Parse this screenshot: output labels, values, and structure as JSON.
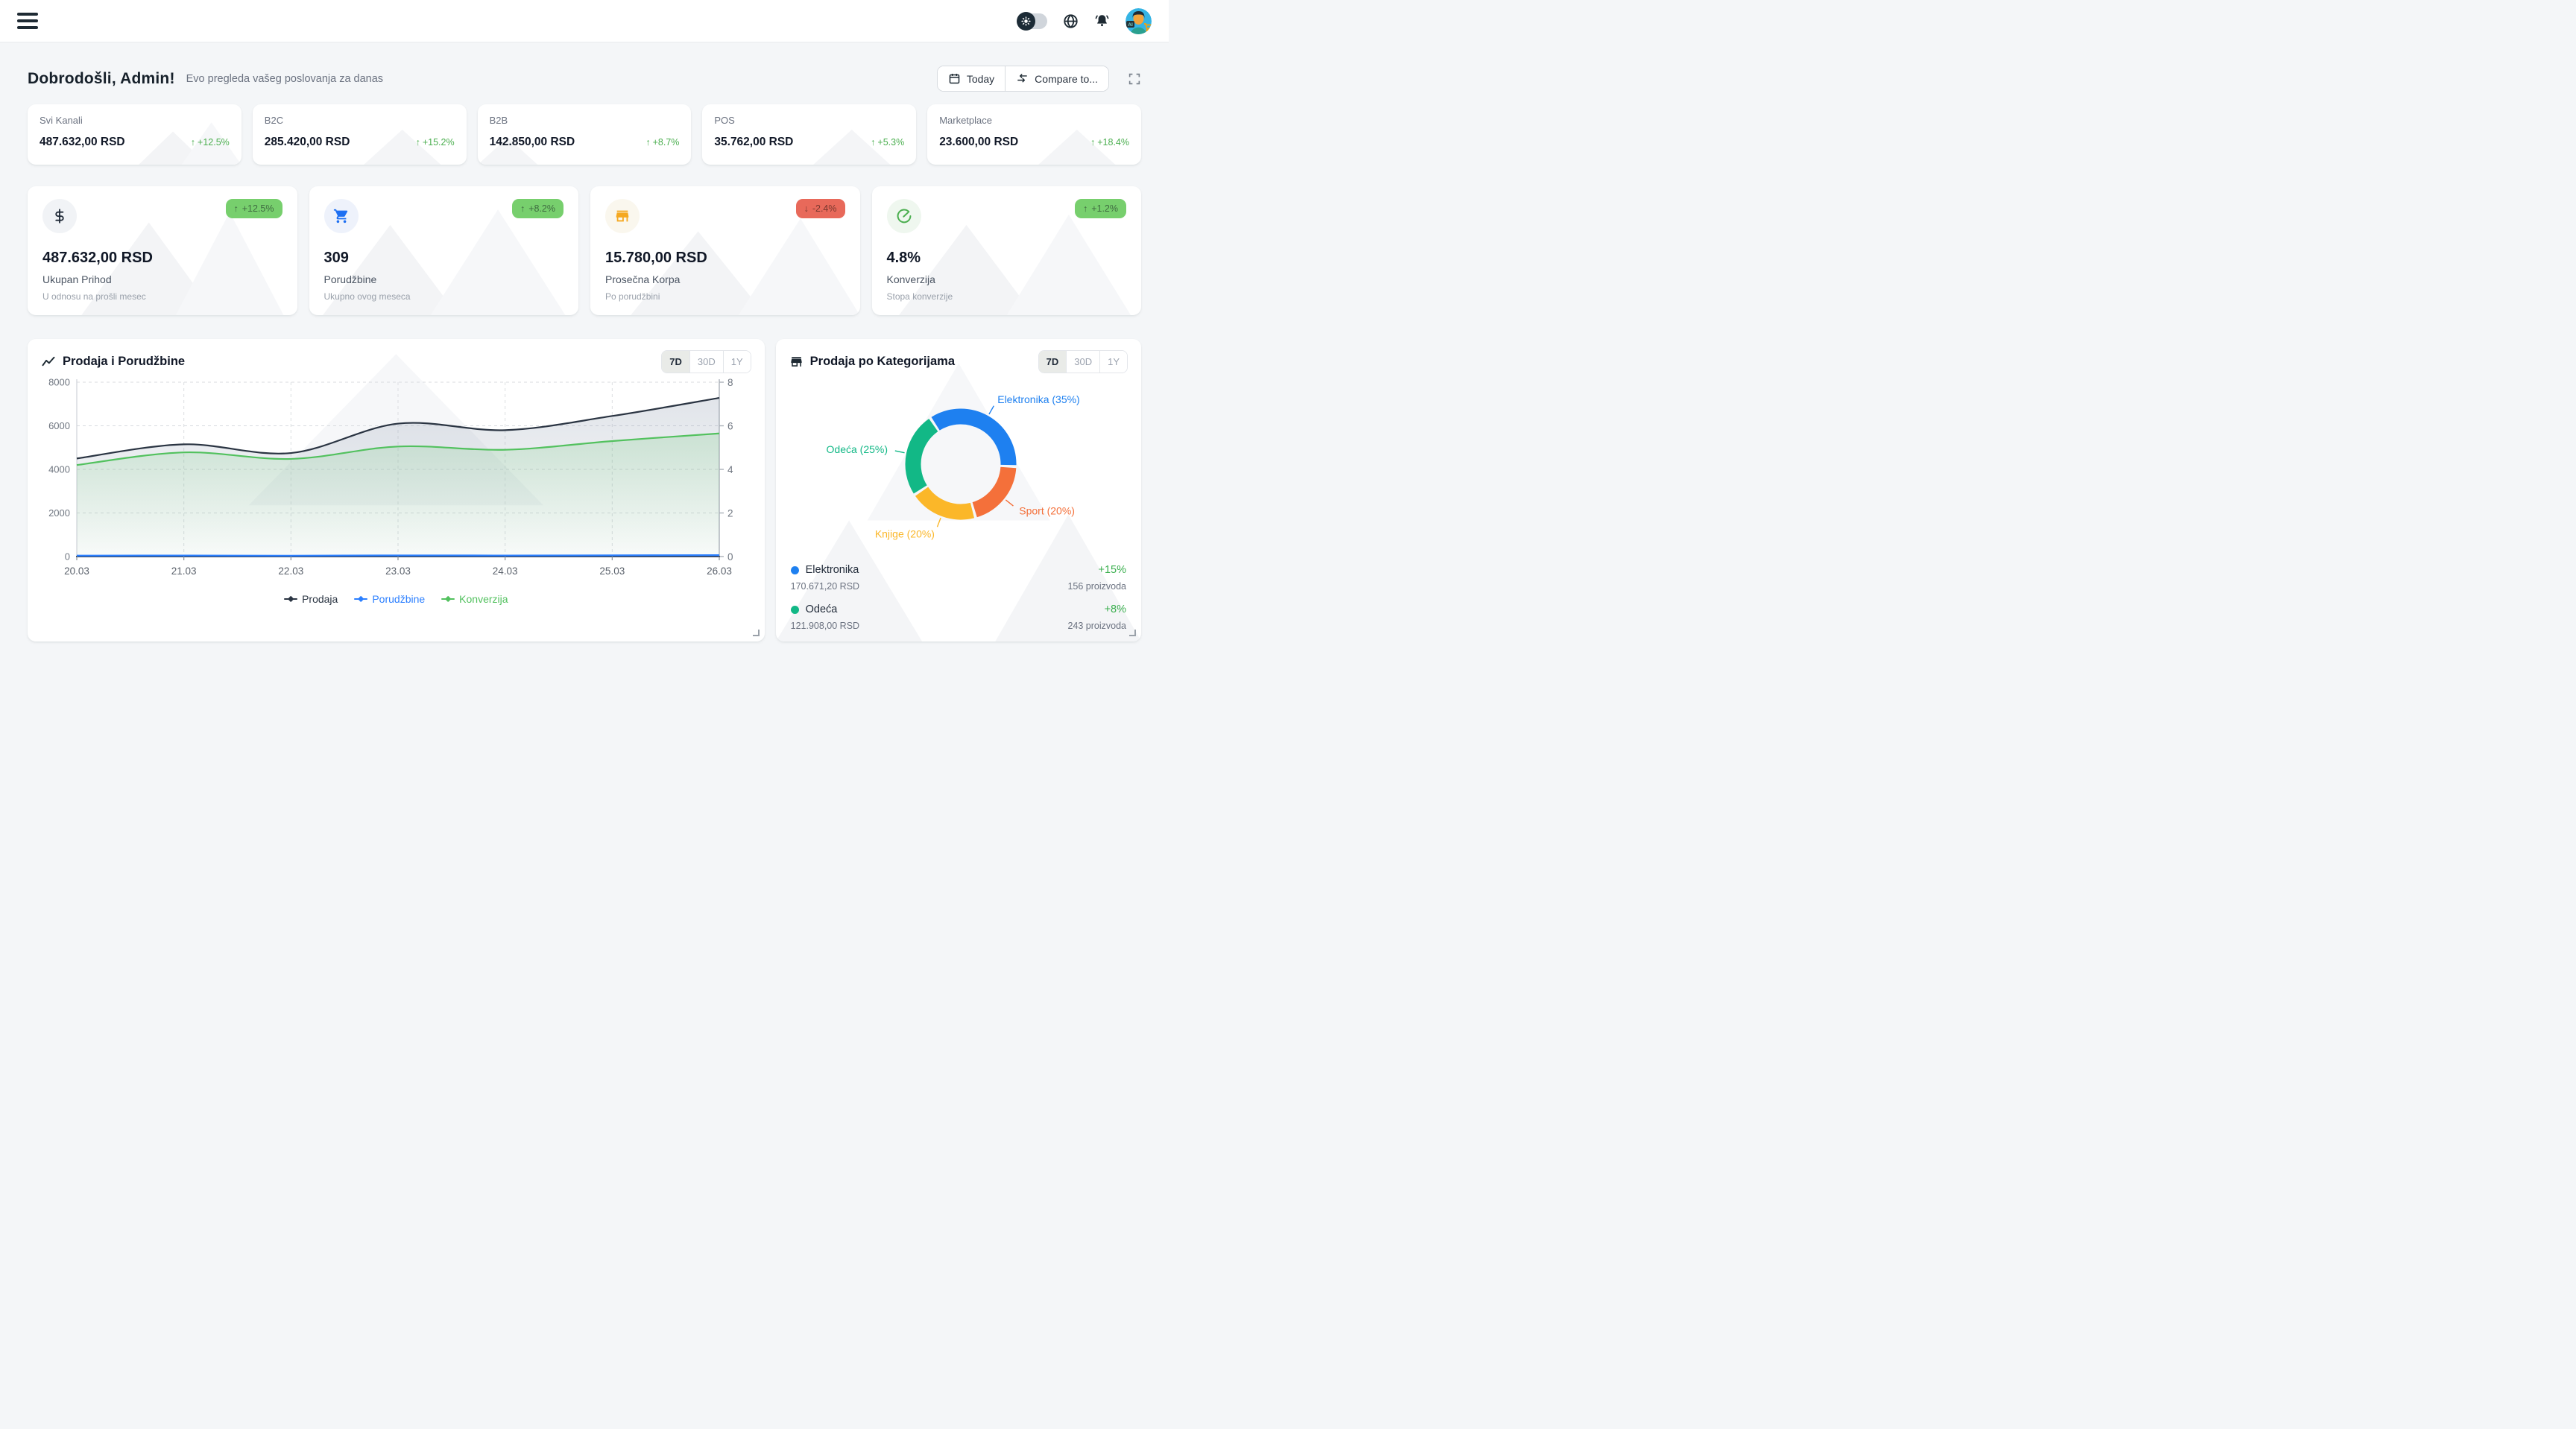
{
  "topbar": {
    "avatar_badge": "AI"
  },
  "header": {
    "title": "Dobrodošli, Admin!",
    "subtitle": "Evo pregleda vašeg poslovanja za danas",
    "today_label": "Today",
    "compare_label": "Compare to..."
  },
  "channels": [
    {
      "label": "Svi Kanali",
      "value": "487.632,00 RSD",
      "trend": "+12.5%"
    },
    {
      "label": "B2C",
      "value": "285.420,00 RSD",
      "trend": "+15.2%"
    },
    {
      "label": "B2B",
      "value": "142.850,00 RSD",
      "trend": "+8.7%"
    },
    {
      "label": "POS",
      "value": "35.762,00 RSD",
      "trend": "+5.3%"
    },
    {
      "label": "Marketplace",
      "value": "23.600,00 RSD",
      "trend": "+18.4%"
    }
  ],
  "kpis": [
    {
      "value": "487.632,00 RSD",
      "label": "Ukupan Prihod",
      "sublabel": "U odnosu na prošli mesec",
      "badge": "+12.5%",
      "direction": "up"
    },
    {
      "value": "309",
      "label": "Porudžbine",
      "sublabel": "Ukupno ovog meseca",
      "badge": "+8.2%",
      "direction": "up"
    },
    {
      "value": "15.780,00 RSD",
      "label": "Prosečna Korpa",
      "sublabel": "Po porudžbini",
      "badge": "-2.4%",
      "direction": "down"
    },
    {
      "value": "4.8%",
      "label": "Konverzija",
      "sublabel": "Stopa konverzije",
      "badge": "+1.2%",
      "direction": "up"
    }
  ],
  "sales_chart": {
    "title": "Prodaja i Porudžbine",
    "ranges": [
      "7D",
      "30D",
      "1Y"
    ],
    "active": "7D"
  },
  "category_chart": {
    "title": "Prodaja po Kategorijama",
    "ranges": [
      "7D",
      "30D",
      "1Y"
    ],
    "active": "7D",
    "legend": [
      {
        "name": "Elektronika",
        "change": "+15%",
        "value": "170.671,20 RSD",
        "products": "156 proizvoda",
        "color": "#1e80f0"
      },
      {
        "name": "Odeća",
        "change": "+8%",
        "value": "121.908,00 RSD",
        "products": "243 proizvoda",
        "color": "#12b886"
      }
    ]
  },
  "colors": {
    "positive": "#4caf50",
    "badge_up_bg": "#77cf6d",
    "badge_down_bg": "#e8695a"
  },
  "chart_data": [
    {
      "type": "line",
      "title": "Prodaja i Porudžbine",
      "x": [
        "20.03",
        "21.03",
        "22.03",
        "23.03",
        "24.03",
        "25.03",
        "26.03"
      ],
      "series": [
        {
          "name": "Prodaja",
          "axis": "left",
          "color": "#2a3442",
          "fill": "gray",
          "values": [
            4500,
            5150,
            4750,
            6100,
            5800,
            6450,
            7280
          ]
        },
        {
          "name": "Porudžbine",
          "axis": "left",
          "color": "#2b7fff",
          "fill": "none",
          "values": [
            40,
            44,
            38,
            50,
            46,
            54,
            62
          ]
        },
        {
          "name": "Konverzija",
          "axis": "right",
          "color": "#52c15e",
          "fill": "green",
          "values": [
            4.2,
            4.78,
            4.48,
            5.05,
            4.9,
            5.3,
            5.65
          ]
        }
      ],
      "y_left": {
        "min": 0,
        "max": 8000,
        "ticks": [
          0,
          2000,
          4000,
          6000,
          8000
        ]
      },
      "y_right": {
        "min": 0,
        "max": 8,
        "ticks": [
          0,
          2,
          4,
          6,
          8
        ]
      },
      "grid": "dashed",
      "legend_position": "bottom"
    },
    {
      "type": "pie",
      "title": "Prodaja po Kategorijama",
      "donut": true,
      "start_angle": -32,
      "gap_deg": 3,
      "slices": [
        {
          "label": "Elektronika",
          "pct": 35,
          "color": "#1e80f0"
        },
        {
          "label": "Sport",
          "pct": 20,
          "color": "#f4703a"
        },
        {
          "label": "Knjige",
          "pct": 20,
          "color": "#fbb729"
        },
        {
          "label": "Odeća",
          "pct": 25,
          "color": "#12b886"
        }
      ]
    }
  ]
}
